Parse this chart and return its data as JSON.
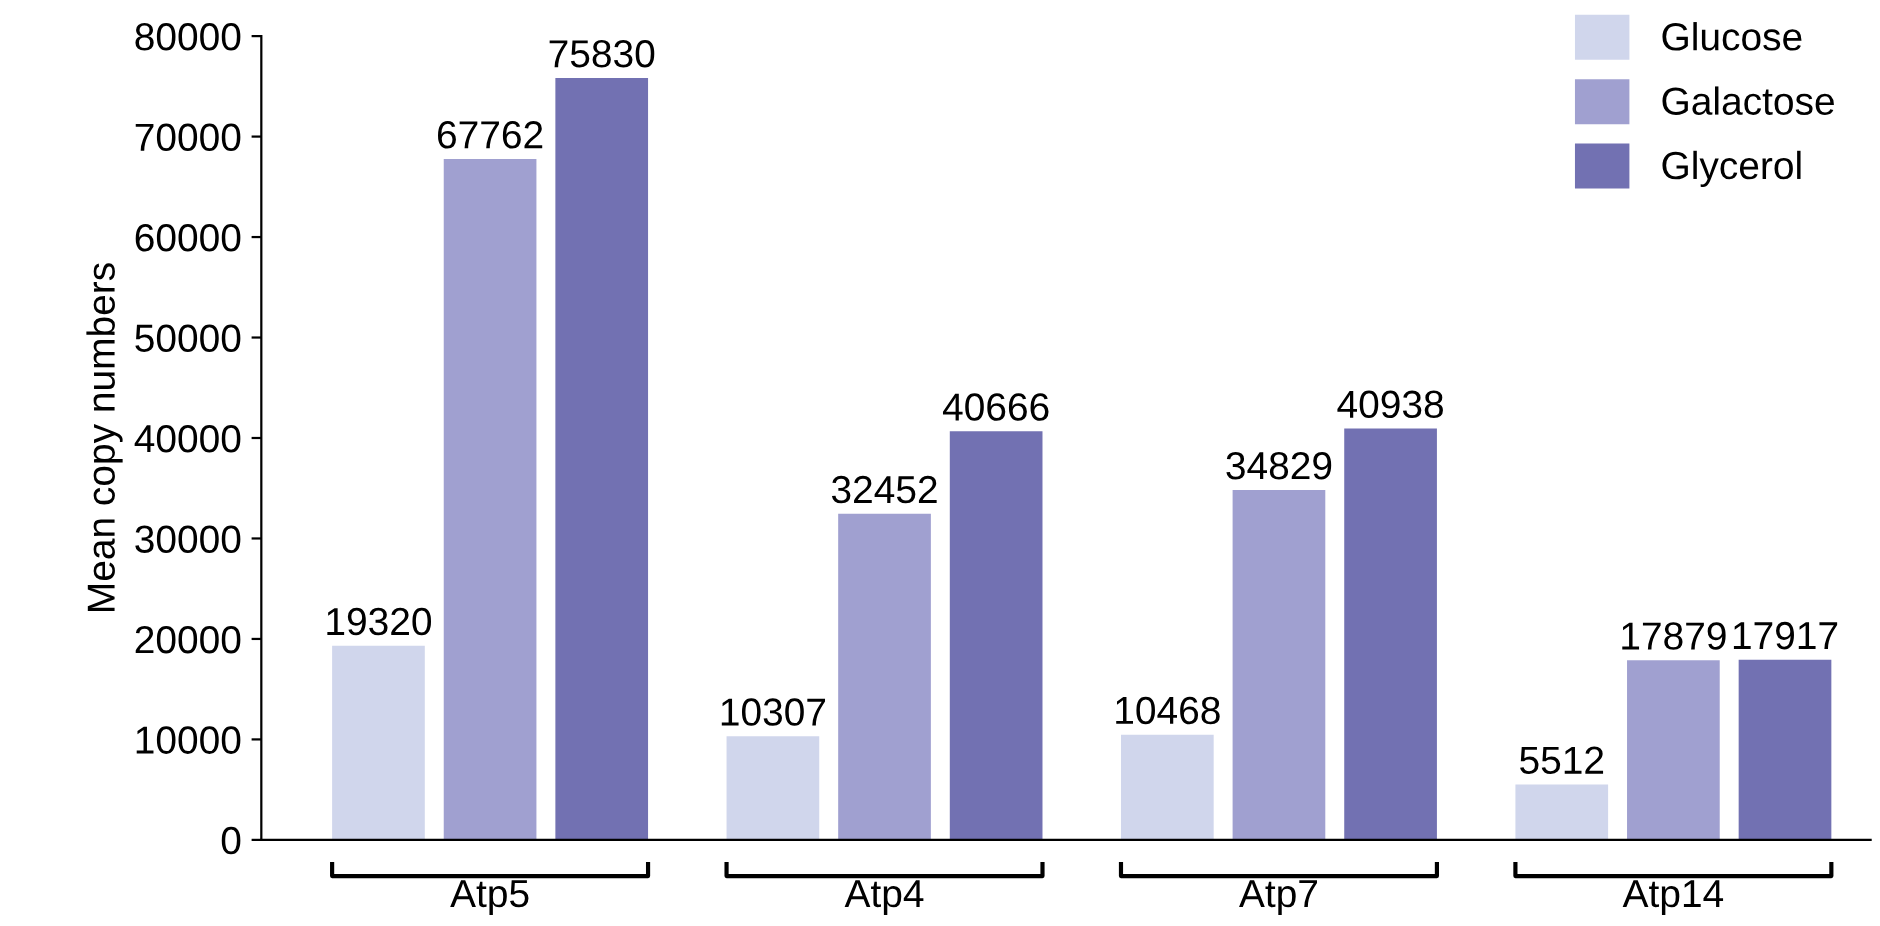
{
  "chart_data": {
    "type": "bar",
    "ylabel": "Mean copy numbers",
    "categories": [
      "Atp5",
      "Atp4",
      "Atp7",
      "Atp14"
    ],
    "series": [
      {
        "name": "Glucose",
        "color": "#d0d6ec",
        "values": [
          19320,
          10307,
          10468,
          5512
        ]
      },
      {
        "name": "Galactose",
        "color": "#a0a0d0",
        "values": [
          67762,
          32452,
          34829,
          17879
        ]
      },
      {
        "name": "Glycerol",
        "color": "#7271b2",
        "values": [
          75830,
          40666,
          40938,
          17917
        ]
      }
    ],
    "ylim": [
      0,
      80000
    ],
    "yticks": [
      0,
      10000,
      20000,
      30000,
      40000,
      50000,
      60000,
      70000,
      80000
    ],
    "data_labels": true,
    "legend": "top right",
    "grid": false
  }
}
